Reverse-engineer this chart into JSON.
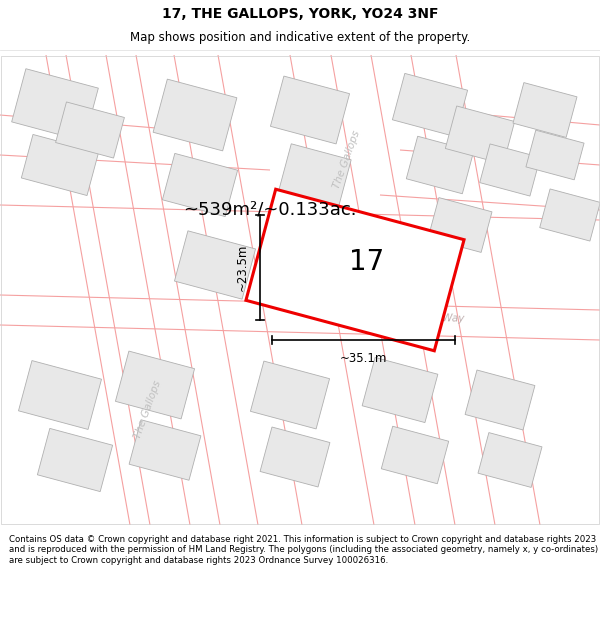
{
  "title": "17, THE GALLOPS, YORK, YO24 3NF",
  "subtitle": "Map shows position and indicative extent of the property.",
  "footer": "Contains OS data © Crown copyright and database right 2021. This information is subject to Crown copyright and database rights 2023 and is reproduced with the permission of HM Land Registry. The polygons (including the associated geometry, namely x, y co-ordinates) are subject to Crown copyright and database rights 2023 Ordnance Survey 100026316.",
  "area_label": "~539m²/~0.133ac.",
  "width_label": "~35.1m",
  "height_label": "~23.5m",
  "number_label": "17",
  "bg_color": "#ffffff",
  "map_bg": "#ffffff",
  "building_fill": "#e8e8e8",
  "building_edge": "#b0b0b0",
  "road_color": "#f5a0a0",
  "highlight_fill": "#ffffff",
  "highlight_edge": "#ee0000",
  "road_label_color": "#c0b0b0",
  "street_label_color": "#c0c0c0",
  "title_fontsize": 10,
  "subtitle_fontsize": 8.5,
  "footer_fontsize": 6.2,
  "area_fontsize": 13,
  "number_fontsize": 20,
  "dim_fontsize": 8.5
}
